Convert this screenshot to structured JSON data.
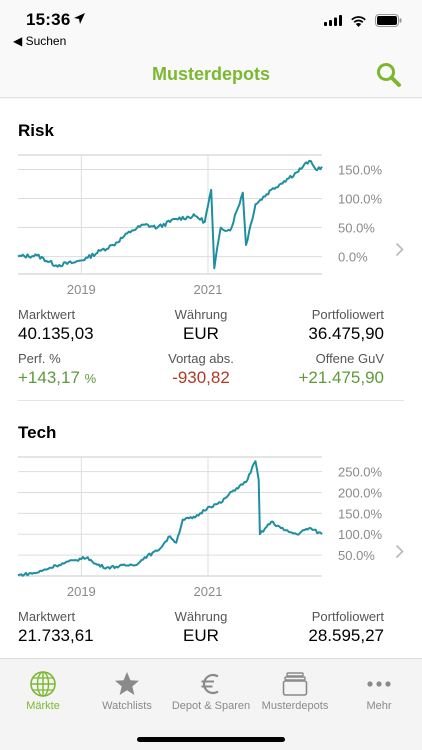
{
  "status_bar": {
    "time": "15:36",
    "back_label": "◀ Suchen"
  },
  "nav": {
    "title": "Musterdepots"
  },
  "colors": {
    "accent": "#7cb82f",
    "line": "#1f8fa0",
    "positive": "#5f9a3a",
    "negative": "#b03a25"
  },
  "depots": [
    {
      "name": "Risk",
      "chart_data": {
        "type": "line",
        "x_ticks": [
          "2019",
          "2021"
        ],
        "y_ticks": [
          "150.0%",
          "100.0%",
          "50.0%",
          "0.0%"
        ],
        "y_values": [
          150,
          100,
          50,
          0
        ],
        "ylim": [
          -30,
          175
        ],
        "x_range": [
          2018.0,
          2022.8
        ],
        "series": [
          {
            "values": [
              [
                2018.0,
                0
              ],
              [
                2018.3,
                2
              ],
              [
                2018.6,
                -15
              ],
              [
                2018.9,
                -10
              ],
              [
                2019.1,
                -2
              ],
              [
                2019.3,
                10
              ],
              [
                2019.5,
                20
              ],
              [
                2019.8,
                45
              ],
              [
                2020.0,
                55
              ],
              [
                2020.2,
                50
              ],
              [
                2020.5,
                65
              ],
              [
                2020.8,
                70
              ],
              [
                2020.95,
                60
              ],
              [
                2021.05,
                115
              ],
              [
                2021.1,
                -20
              ],
              [
                2021.2,
                50
              ],
              [
                2021.35,
                45
              ],
              [
                2021.55,
                110
              ],
              [
                2021.6,
                20
              ],
              [
                2021.75,
                90
              ],
              [
                2022.0,
                115
              ],
              [
                2022.2,
                130
              ],
              [
                2022.4,
                145
              ],
              [
                2022.5,
                155
              ],
              [
                2022.6,
                165
              ],
              [
                2022.7,
                150
              ],
              [
                2022.8,
                155
              ]
            ]
          }
        ]
      },
      "metrics": {
        "marktwert_label": "Marktwert",
        "marktwert": "40.135,03",
        "waehrung_label": "Währung",
        "waehrung": "EUR",
        "portfoliowert_label": "Portfoliowert",
        "portfoliowert": "36.475,90",
        "perf_label": "Perf. %",
        "perf": "+143,17",
        "perf_unit": "%",
        "vortag_label": "Vortag abs.",
        "vortag": "-930,82",
        "guv_label": "Offene GuV",
        "guv": "+21.475,90"
      }
    },
    {
      "name": "Tech",
      "chart_data": {
        "type": "line",
        "x_ticks": [
          "2019",
          "2021"
        ],
        "y_ticks": [
          "250.0%",
          "200.0%",
          "150.0%",
          "100.0%",
          "50.0%"
        ],
        "y_values": [
          250,
          200,
          150,
          100,
          50
        ],
        "ylim": [
          0,
          285
        ],
        "x_range": [
          2018.0,
          2022.8
        ],
        "series": [
          {
            "values": [
              [
                2018.0,
                2
              ],
              [
                2018.3,
                8
              ],
              [
                2018.6,
                25
              ],
              [
                2018.9,
                38
              ],
              [
                2019.1,
                45
              ],
              [
                2019.2,
                30
              ],
              [
                2019.4,
                20
              ],
              [
                2019.7,
                25
              ],
              [
                2019.9,
                30
              ],
              [
                2020.0,
                45
              ],
              [
                2020.2,
                60
              ],
              [
                2020.4,
                95
              ],
              [
                2020.5,
                80
              ],
              [
                2020.6,
                135
              ],
              [
                2020.8,
                140
              ],
              [
                2021.0,
                165
              ],
              [
                2021.2,
                175
              ],
              [
                2021.4,
                205
              ],
              [
                2021.6,
                225
              ],
              [
                2021.75,
                275
              ],
              [
                2021.8,
                230
              ],
              [
                2021.82,
                100
              ],
              [
                2022.0,
                130
              ],
              [
                2022.2,
                110
              ],
              [
                2022.4,
                100
              ],
              [
                2022.6,
                115
              ],
              [
                2022.8,
                100
              ]
            ]
          }
        ]
      },
      "metrics": {
        "marktwert_label": "Marktwert",
        "marktwert": "21.733,61",
        "waehrung_label": "Währung",
        "waehrung": "EUR",
        "portfoliowert_label": "Portfoliowert",
        "portfoliowert": "28.595,27"
      }
    }
  ],
  "tabs": [
    {
      "label": "Märkte",
      "icon": "globe-icon",
      "active": true
    },
    {
      "label": "Watchlists",
      "icon": "star-icon",
      "active": false
    },
    {
      "label": "Depot & Sparen",
      "icon": "euro-icon",
      "active": false
    },
    {
      "label": "Musterdepots",
      "icon": "stack-icon",
      "active": false
    },
    {
      "label": "Mehr",
      "icon": "more-icon",
      "active": false
    }
  ]
}
